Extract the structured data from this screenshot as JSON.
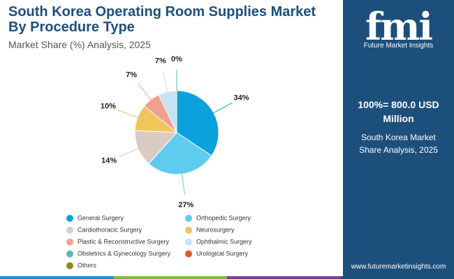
{
  "chart_data": {
    "type": "pie",
    "title": "South Korea Operating Room Supplies Market By Procedure Type",
    "subtitle": "Market Share (%) Analysis, 2025",
    "categories": [
      "General Surgery",
      "Orthopedic Surgery",
      "Cardiothoracic Surgery",
      "Neurosurgery",
      "Plastic & Reconstructive Surgery",
      "Ophthalmic Surgery",
      "Obstetrics & Gynecology Surgery",
      "Urological Surgery",
      "Others"
    ],
    "values": [
      34,
      27,
      14,
      10,
      7,
      7,
      0,
      0,
      0
    ],
    "value_labels": [
      "34%",
      "27%",
      "14%",
      "10%",
      "7%",
      "7%",
      "0%",
      null,
      null
    ],
    "colors": [
      "#0ba1dd",
      "#5fcbef",
      "#d9cbc3",
      "#f1c45c",
      "#f0a090",
      "#c6e3f4",
      "#5db8b4",
      "#e2592c",
      "#8c8a1c"
    ]
  },
  "panel": {
    "total": "100%= 800.0 USD Million",
    "caption": "South Korea Market Share Analysis, 2025",
    "logo": "fmi",
    "brand": "Future Market Insights",
    "url": "www.futuremarketinsights.com"
  }
}
